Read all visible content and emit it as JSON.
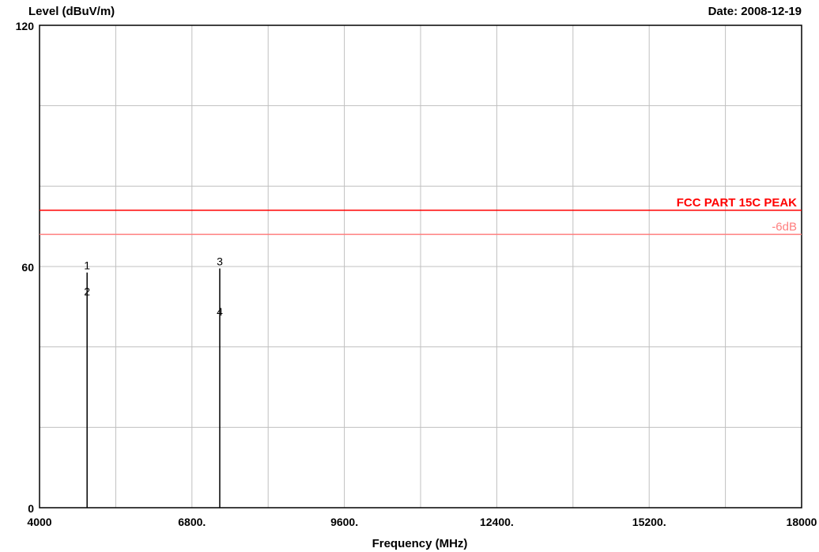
{
  "chart_data": {
    "type": "line",
    "ylabel": "Level (dBuV/m)",
    "xlabel": "Frequency (MHz)",
    "date_label": "Date: 2008-12-19",
    "xlim": [
      4000,
      18000
    ],
    "ylim": [
      0,
      120
    ],
    "x_ticks": [
      4000,
      6800,
      9600,
      12400,
      15200,
      18000
    ],
    "x_tick_labels": [
      "4000",
      "6800.",
      "9600.",
      "12400.",
      "15200.",
      "18000"
    ],
    "y_ticks": [
      0,
      60,
      120
    ],
    "y_tick_labels": [
      "0",
      "60",
      "120"
    ],
    "y_grid": [
      0,
      20,
      40,
      60,
      80,
      100,
      120
    ],
    "x_grid_step": 1400,
    "grid": true,
    "limit_lines": [
      {
        "label": "FCC PART 15C  PEAK",
        "value": 74,
        "color": "#ff0000"
      },
      {
        "label": "-6dB",
        "value": 68,
        "color": "#ff7f7f"
      }
    ],
    "markers": [
      {
        "label": "1",
        "x": 4874,
        "y": 58.5
      },
      {
        "label": "2",
        "x": 4874,
        "y": 52
      },
      {
        "label": "3",
        "x": 7311,
        "y": 59.5
      },
      {
        "label": "4",
        "x": 7311,
        "y": 47
      }
    ],
    "spikes": [
      {
        "x": 4874,
        "y": 58.5
      },
      {
        "x": 7311,
        "y": 59.5
      }
    ]
  }
}
